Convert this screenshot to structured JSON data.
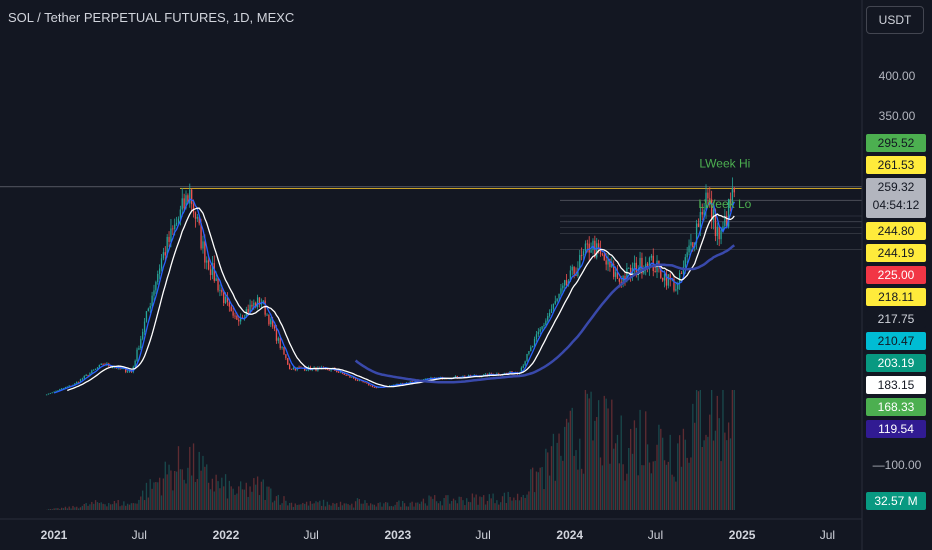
{
  "header": {
    "title": "SOL / Tether PERPETUAL FUTURES, 1D, MEXC",
    "currency_button": "USDT"
  },
  "colors": {
    "background": "#131722",
    "up_candle": "#26a69a",
    "down_candle": "#ef5350",
    "sma_fast": "#2962ff",
    "sma_mid": "#ffffff",
    "sma_slow": "#3949ab",
    "level_line": "#c9a227"
  },
  "chart_data": {
    "type": "candlestick",
    "timeframe": "1D",
    "x_ticks": [
      "2021",
      "Jul",
      "2022",
      "Jul",
      "2023",
      "Jul",
      "2024",
      "Jul",
      "2025",
      "Jul"
    ],
    "y_ticks": [
      400.0,
      350.0
    ],
    "volume_ticks": [
      "100.00"
    ],
    "approx_price_path": [
      {
        "date": "2021-01",
        "close": 2
      },
      {
        "date": "2021-03",
        "close": 15
      },
      {
        "date": "2021-05",
        "close": 40
      },
      {
        "date": "2021-07",
        "close": 30
      },
      {
        "date": "2021-09",
        "close": 170
      },
      {
        "date": "2021-11",
        "close": 255
      },
      {
        "date": "2021-12",
        "close": 180
      },
      {
        "date": "2022-02",
        "close": 95
      },
      {
        "date": "2022-04",
        "close": 120
      },
      {
        "date": "2022-06",
        "close": 35
      },
      {
        "date": "2022-09",
        "close": 33
      },
      {
        "date": "2022-12",
        "close": 10
      },
      {
        "date": "2023-04",
        "close": 22
      },
      {
        "date": "2023-07",
        "close": 25
      },
      {
        "date": "2023-10",
        "close": 30
      },
      {
        "date": "2023-12",
        "close": 100
      },
      {
        "date": "2024-03",
        "close": 190
      },
      {
        "date": "2024-05",
        "close": 145
      },
      {
        "date": "2024-07",
        "close": 170
      },
      {
        "date": "2024-09",
        "close": 135
      },
      {
        "date": "2024-11",
        "close": 250
      },
      {
        "date": "2024-12",
        "close": 195
      },
      {
        "date": "2025-01",
        "close": 259.32
      }
    ],
    "annotations": [
      {
        "label": "LWeek Hi",
        "color": "#4caf50"
      },
      {
        "label": "LWeek Lo",
        "color": "#4caf50"
      }
    ],
    "price_labels": [
      {
        "value": "295.52",
        "bg": "#4caf50",
        "fg": "#131722"
      },
      {
        "value": "261.53",
        "bg": "#ffeb3b",
        "fg": "#131722"
      },
      {
        "value": "259.32",
        "sub": "04:54:12",
        "bg": "#b2b5be",
        "fg": "#131722"
      },
      {
        "value": "244.80",
        "bg": "#ffeb3b",
        "fg": "#131722"
      },
      {
        "value": "244.19",
        "bg": "#ffeb3b",
        "fg": "#131722"
      },
      {
        "value": "225.00",
        "bg": "#f23645",
        "fg": "#ffffff"
      },
      {
        "value": "218.11",
        "bg": "#ffeb3b",
        "fg": "#131722"
      },
      {
        "value": "217.75",
        "bg": "#131722",
        "fg": "#d1d4dc"
      },
      {
        "value": "210.47",
        "bg": "#00bcd4",
        "fg": "#131722"
      },
      {
        "value": "203.19",
        "bg": "#089981",
        "fg": "#ffffff"
      },
      {
        "value": "183.15",
        "bg": "#ffffff",
        "fg": "#131722"
      },
      {
        "value": "168.33",
        "bg": "#4caf50",
        "fg": "#ffffff"
      },
      {
        "value": "119.54",
        "bg": "#311b92",
        "fg": "#ffffff"
      }
    ],
    "volume_label": {
      "value": "32.57 M",
      "bg": "#089981",
      "fg": "#ffffff"
    }
  }
}
